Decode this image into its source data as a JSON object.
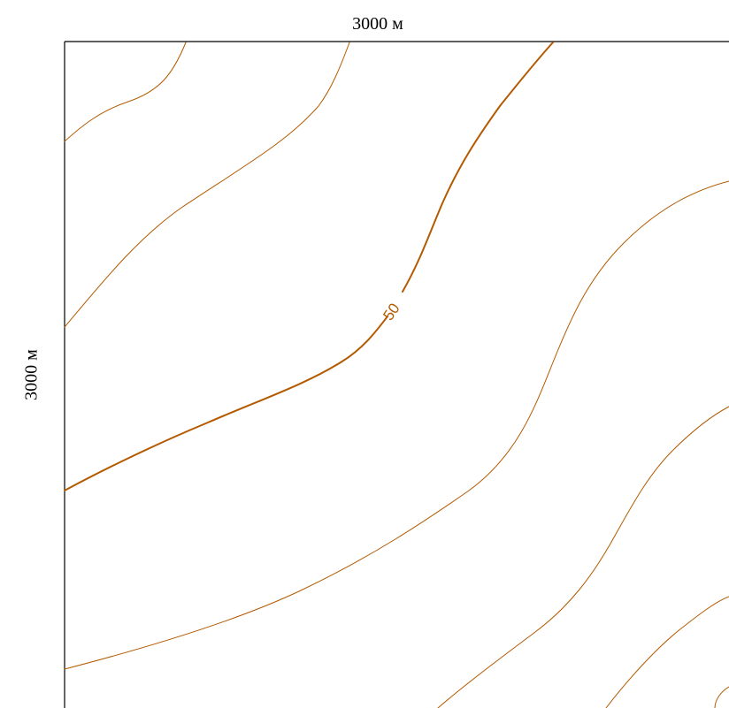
{
  "map": {
    "width_label": "3000 м",
    "height_label": "3000 м",
    "contour_color": "#b35a00",
    "index_contour_label": "50"
  }
}
